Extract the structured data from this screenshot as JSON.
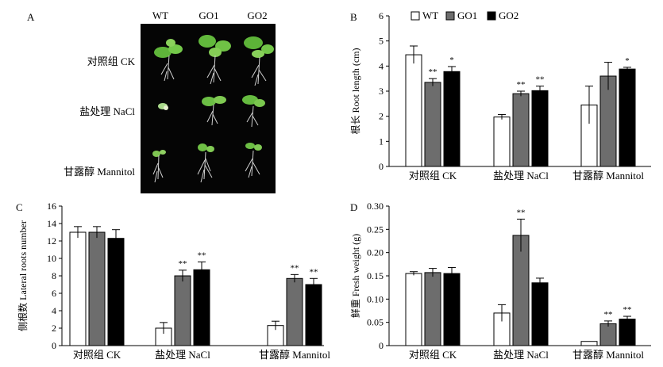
{
  "panel_a": {
    "letter": "A",
    "columns": [
      "WT",
      "GO1",
      "GO2"
    ],
    "rows": [
      "对照组 CK",
      "盐处理 NaCl",
      "甘露醇 Mannitol"
    ]
  },
  "colors": {
    "WT": "#ffffff",
    "GO1": "#6d6d6d",
    "GO2": "#000000"
  },
  "chart_data": [
    {
      "id": "B",
      "letter": "B",
      "type": "bar",
      "ylabel_cn": "根长",
      "ylabel_en": "Root length (cm)",
      "ylim": [
        0,
        6
      ],
      "ticks": [
        "0",
        "1",
        "2",
        "3",
        "4",
        "5",
        "6"
      ],
      "categories": [
        "对照组 CK",
        "盐处理 NaCl",
        "甘露醇 Mannitol"
      ],
      "legend": [
        "WT",
        "GO1",
        "GO2"
      ],
      "series": [
        {
          "name": "WT",
          "values": [
            4.45,
            1.97,
            2.45
          ],
          "errors": [
            0.35,
            0.1,
            0.75
          ],
          "sig": [
            "",
            "",
            ""
          ]
        },
        {
          "name": "GO1",
          "values": [
            3.35,
            2.9,
            3.6
          ],
          "errors": [
            0.15,
            0.1,
            0.55
          ],
          "sig": [
            "**",
            "**",
            ""
          ]
        },
        {
          "name": "GO2",
          "values": [
            3.78,
            3.02,
            3.88
          ],
          "errors": [
            0.2,
            0.18,
            0.07
          ],
          "sig": [
            "*",
            "**",
            "*"
          ]
        }
      ]
    },
    {
      "id": "C",
      "letter": "C",
      "type": "bar",
      "ylabel_cn": "侧根数",
      "ylabel_en": "Lateral roots number",
      "ylim": [
        0,
        16
      ],
      "ticks": [
        "0",
        "2",
        "4",
        "6",
        "8",
        "10",
        "12",
        "14",
        "16"
      ],
      "categories": [
        "对照组 CK",
        "盐处理 NaCl",
        "甘露醇 Mannitol"
      ],
      "series": [
        {
          "name": "WT",
          "values": [
            13.0,
            2.0,
            2.3
          ],
          "errors": [
            0.65,
            0.65,
            0.5
          ],
          "sig": [
            "",
            "",
            ""
          ]
        },
        {
          "name": "GO1",
          "values": [
            13.0,
            8.0,
            7.7
          ],
          "errors": [
            0.65,
            0.65,
            0.45
          ],
          "sig": [
            "",
            "**",
            "**"
          ]
        },
        {
          "name": "GO2",
          "values": [
            12.3,
            8.7,
            7.0
          ],
          "errors": [
            1.0,
            0.9,
            0.7
          ],
          "sig": [
            "",
            "**",
            "**"
          ]
        }
      ]
    },
    {
      "id": "D",
      "letter": "D",
      "type": "bar",
      "ylabel_cn": "鲜重",
      "ylabel_en": "Fresh weight (g)",
      "ylim": [
        0,
        0.3
      ],
      "ticks": [
        "0",
        "0.05",
        "0.10",
        "0.15",
        "0.20",
        "0.25",
        "0.30"
      ],
      "categories": [
        "对照组 CK",
        "盐处理 NaCl",
        "甘露醇 Mannitol"
      ],
      "series": [
        {
          "name": "WT",
          "values": [
            0.155,
            0.07,
            0.009
          ],
          "errors": [
            0.004,
            0.018,
            0.0
          ],
          "sig": [
            "",
            "",
            ""
          ]
        },
        {
          "name": "GO1",
          "values": [
            0.157,
            0.237,
            0.047
          ],
          "errors": [
            0.009,
            0.035,
            0.006
          ],
          "sig": [
            "",
            "**",
            "**"
          ]
        },
        {
          "name": "GO2",
          "values": [
            0.155,
            0.135,
            0.057
          ],
          "errors": [
            0.013,
            0.01,
            0.006
          ],
          "sig": [
            "",
            "",
            "**"
          ]
        }
      ]
    }
  ]
}
